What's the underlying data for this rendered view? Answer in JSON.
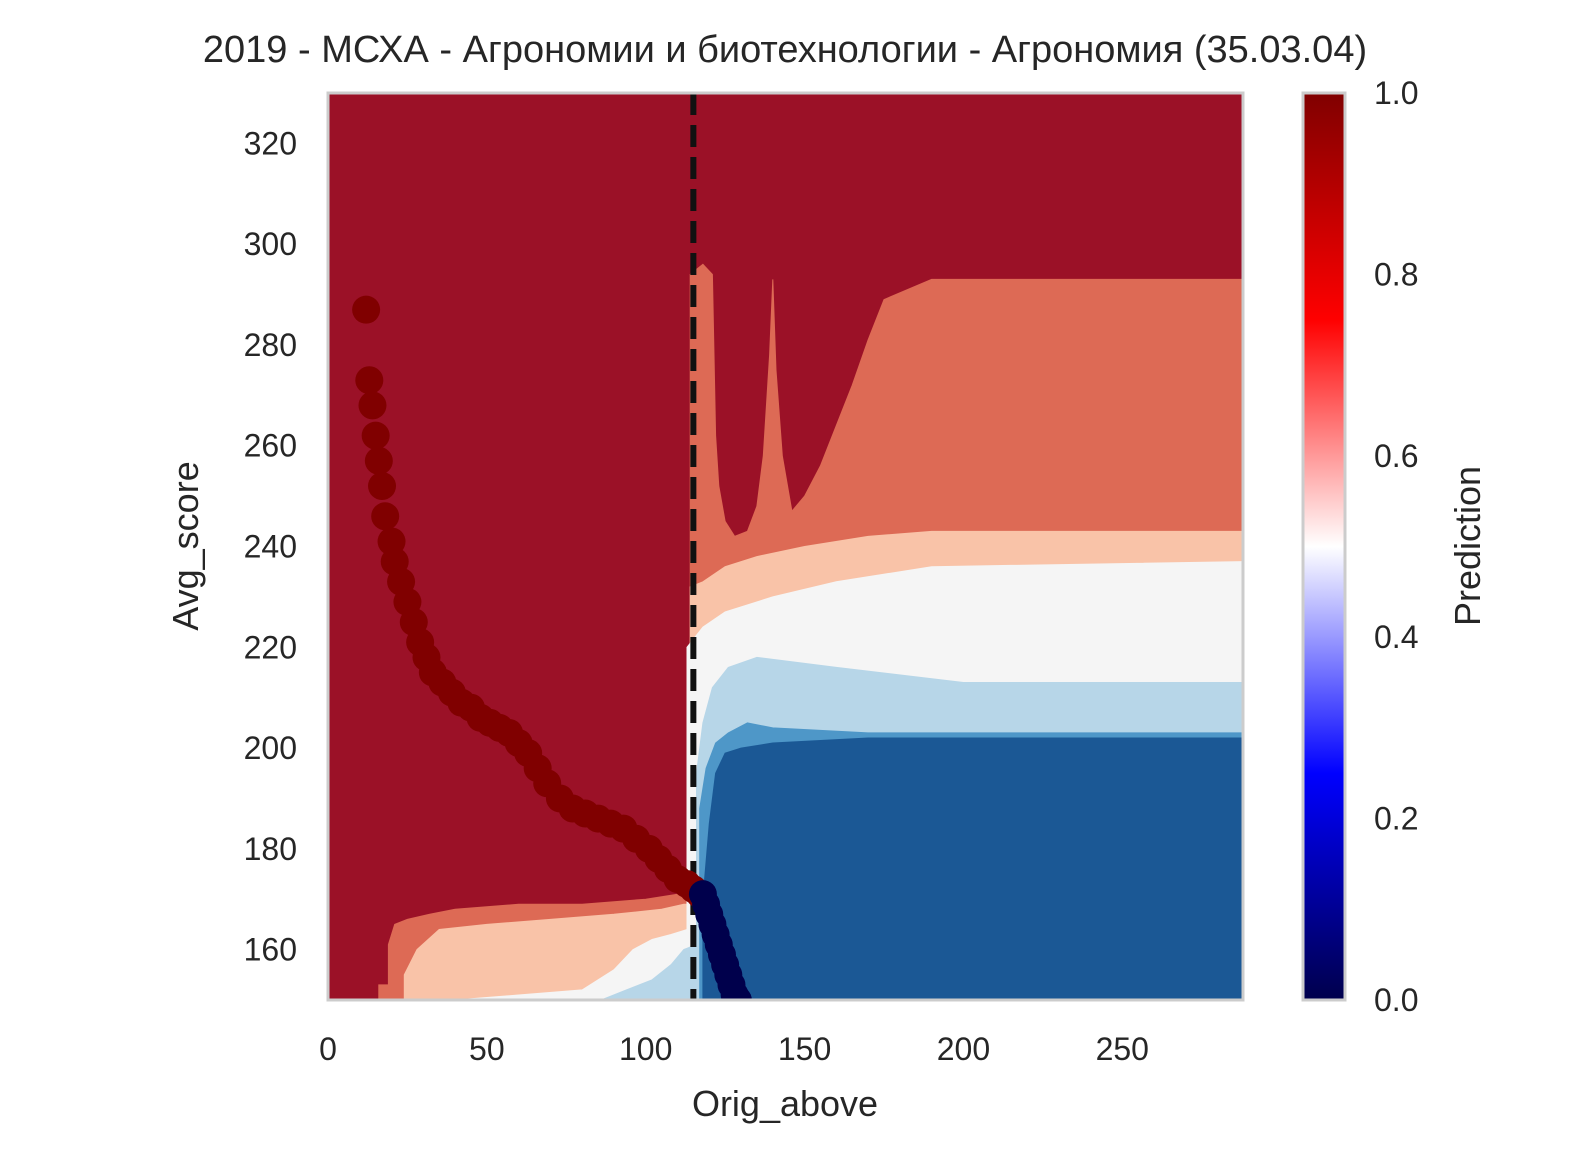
{
  "chart_data": {
    "type": "heatmap",
    "title": "2019 - МСХА - Агрономии и биотехнологии - Агрономия (35.03.04)",
    "xlabel": "Orig_above",
    "ylabel": "Avg_score",
    "xlim": [
      0,
      288
    ],
    "ylim": [
      150,
      330
    ],
    "xticks": [
      0,
      50,
      100,
      150,
      200,
      250
    ],
    "yticks": [
      160,
      180,
      200,
      220,
      240,
      260,
      280,
      300,
      320
    ],
    "grid": false,
    "colormap": "seismic",
    "colorbar": {
      "label": "Prediction",
      "range": [
        0.0,
        1.0
      ],
      "ticks": [
        "0.0",
        "0.2",
        "0.4",
        "0.6",
        "0.8",
        "1.0"
      ],
      "placement": "right"
    },
    "reference_line": {
      "axis": "x",
      "value": 115,
      "style": "dashed",
      "color": "#111111"
    },
    "contour_levels": [
      {
        "level": "0.9-1.0",
        "color": "#9b1127"
      },
      {
        "level": "0.7-0.9",
        "color": "#dd6a55"
      },
      {
        "level": "0.6-0.7",
        "color": "#f9c3a8"
      },
      {
        "level": "0.4-0.6",
        "color": "#f5f5f5"
      },
      {
        "level": "0.3-0.4",
        "color": "#b7d6e8"
      },
      {
        "level": "0.2-0.3",
        "color": "#4e97c8"
      },
      {
        "level": "0.0-0.2",
        "color": "#1b5895"
      }
    ],
    "regions": [
      {
        "name": "high-prediction-left",
        "value": 0.95
      },
      {
        "name": "upper-right-band",
        "value": 0.8
      },
      {
        "name": "mid-right-band",
        "value": 0.65
      },
      {
        "name": "neutral-band",
        "value": 0.5
      },
      {
        "name": "light-blue-band",
        "value": 0.35
      },
      {
        "name": "blue-strip",
        "value": 0.25
      },
      {
        "name": "low-prediction-block",
        "value": 0.1
      }
    ],
    "series": [
      {
        "values": [
          [
            12,
            287
          ],
          [
            13,
            273
          ],
          [
            14,
            268
          ],
          [
            15,
            262
          ],
          [
            16,
            257
          ],
          [
            17,
            252
          ],
          [
            18,
            246
          ],
          [
            20,
            241
          ],
          [
            21,
            237
          ],
          [
            23,
            233
          ],
          [
            25,
            229
          ],
          [
            27,
            225
          ],
          [
            29,
            221
          ],
          [
            31,
            218
          ],
          [
            33,
            215
          ],
          [
            36,
            213
          ],
          [
            39,
            211
          ],
          [
            42,
            209
          ],
          [
            45,
            208
          ],
          [
            48,
            206
          ],
          [
            51,
            205
          ],
          [
            54,
            204
          ],
          [
            57,
            203
          ],
          [
            60,
            201
          ],
          [
            63,
            199
          ],
          [
            66,
            196
          ],
          [
            69,
            193
          ],
          [
            73,
            190
          ],
          [
            77,
            188
          ],
          [
            81,
            187
          ],
          [
            85,
            186
          ],
          [
            89,
            185
          ],
          [
            93,
            184
          ],
          [
            97,
            182
          ],
          [
            101,
            180
          ],
          [
            104,
            178
          ],
          [
            107,
            176
          ],
          [
            110,
            174
          ],
          [
            113,
            173
          ],
          [
            115,
            172
          ],
          [
            117,
            171
          ]
        ],
        "prediction": 1.0
      },
      {
        "values": [
          [
            118,
            171
          ],
          [
            119,
            169
          ],
          [
            120,
            167
          ],
          [
            121,
            165
          ],
          [
            122,
            163
          ],
          [
            123,
            161
          ],
          [
            124,
            159
          ],
          [
            125,
            157
          ],
          [
            126,
            155
          ],
          [
            127,
            153
          ],
          [
            128,
            151
          ],
          [
            129,
            150
          ]
        ],
        "prediction": 0.0
      }
    ]
  }
}
